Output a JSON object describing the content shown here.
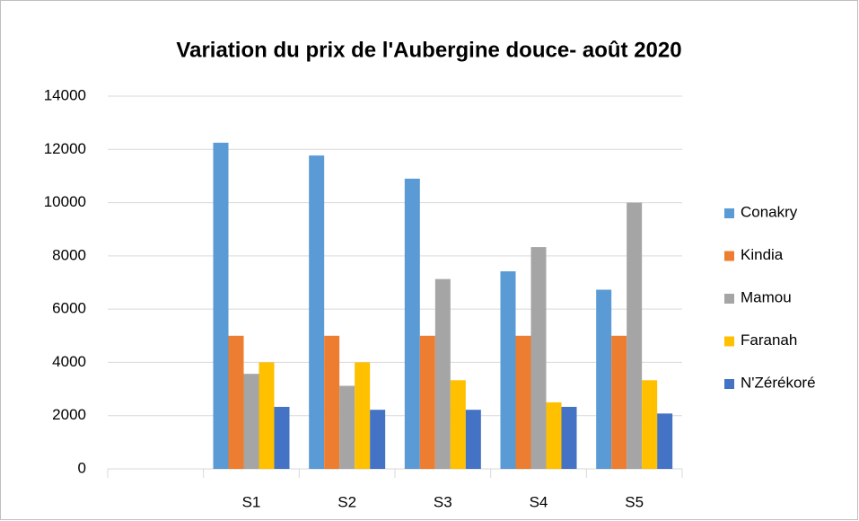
{
  "chart_data": {
    "type": "bar",
    "title": "Variation du prix de l'Aubergine douce- août 2020",
    "categories": [
      null,
      "S1",
      "S2",
      "S3",
      "S4",
      "S5"
    ],
    "series": [
      {
        "name": "Conakry",
        "color": "#5b9bd5",
        "values": [
          null,
          12250,
          11770,
          10900,
          7420,
          6730
        ]
      },
      {
        "name": "Kindia",
        "color": "#ed7d31",
        "values": [
          null,
          5000,
          5000,
          5000,
          5000,
          5000
        ]
      },
      {
        "name": "Mamou",
        "color": "#a5a5a5",
        "values": [
          null,
          3570,
          3120,
          7130,
          8330,
          10000
        ]
      },
      {
        "name": "Faranah",
        "color": "#ffc000",
        "values": [
          null,
          4000,
          4000,
          3330,
          2500,
          3330
        ]
      },
      {
        "name": "N'Zérékoré",
        "color": "#4472c4",
        "values": [
          null,
          2330,
          2220,
          2220,
          2330,
          2080
        ]
      }
    ],
    "ylim": [
      0,
      14000
    ],
    "yticks": [
      0,
      2000,
      4000,
      6000,
      8000,
      10000,
      12000,
      14000
    ],
    "grid": true,
    "legend": "right"
  }
}
